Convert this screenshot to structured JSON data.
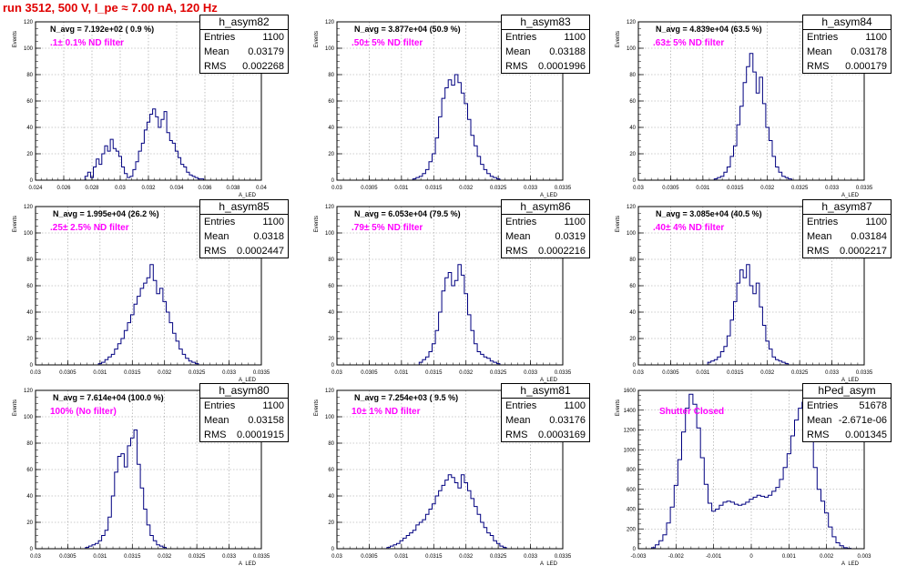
{
  "page": {
    "title": "run 3512,   500 V, I_pe ≈ 7.00 nA, 120 Hz"
  },
  "panels": [
    {
      "name": "h_asym82",
      "navg": "N_avg = 7.192e+02 ( 0.9 %)",
      "anno": ".1± 0.1% ND filter",
      "entries": "1100",
      "mean": "0.03179",
      "rms": "0.002268"
    },
    {
      "name": "h_asym83",
      "navg": "N_avg = 3.877e+04 (50.9 %)",
      "anno": ".50± 5% ND filter",
      "entries": "1100",
      "mean": "0.03188",
      "rms": "0.0001996"
    },
    {
      "name": "h_asym84",
      "navg": "N_avg = 4.839e+04 (63.5 %)",
      "anno": ".63± 5% ND filter",
      "entries": "1100",
      "mean": "0.03178",
      "rms": "0.000179"
    },
    {
      "name": "h_asym85",
      "navg": "N_avg = 1.995e+04 (26.2 %)",
      "anno": ".25± 2.5% ND filter",
      "entries": "1100",
      "mean": "0.0318",
      "rms": "0.0002447"
    },
    {
      "name": "h_asym86",
      "navg": "N_avg = 6.053e+04 (79.5 %)",
      "anno": ".79± 5% ND filter",
      "entries": "1100",
      "mean": "0.0319",
      "rms": "0.0002216"
    },
    {
      "name": "h_asym87",
      "navg": "N_avg = 3.085e+04 (40.5 %)",
      "anno": ".40± 4% ND filter",
      "entries": "1100",
      "mean": "0.03184",
      "rms": "0.0002217"
    },
    {
      "name": "h_asym80",
      "navg": "N_avg = 7.614e+04 (100.0 %)",
      "anno": "100% (No filter)",
      "entries": "1100",
      "mean": "0.03158",
      "rms": "0.0001915"
    },
    {
      "name": "h_asym81",
      "navg": "N_avg = 7.254e+03 ( 9.5 %)",
      "anno": "10± 1% ND filter",
      "entries": "1100",
      "mean": "0.03176",
      "rms": "0.0003169"
    },
    {
      "name": "hPed_asym",
      "navg": "",
      "anno": "Shutter Closed",
      "entries": "51678",
      "mean": "-2.671e-06",
      "rms": "0.001345"
    }
  ],
  "stat_labels": {
    "entries": "Entries",
    "mean": "Mean",
    "rms": "RMS"
  },
  "colors": {
    "title": "#e00000",
    "annotation": "#ff00ff",
    "histogram": "#000080",
    "grid": "#999999"
  },
  "chart_data": [
    {
      "type": "histogram",
      "title": "h_asym82",
      "xlabel": "A_LED",
      "ylabel": "Events",
      "xlim": [
        0.024,
        0.04
      ],
      "ylim": [
        0,
        120
      ],
      "grid": true,
      "xticks": [
        "0.024",
        "0.026",
        "0.028",
        "0.03",
        "0.032",
        "0.034",
        "0.036",
        "0.038",
        "0.04"
      ],
      "yticks": [
        "0",
        "20",
        "40",
        "60",
        "80",
        "100",
        "120"
      ],
      "x": [
        0.0274,
        0.0276,
        0.0278,
        0.028,
        0.0282,
        0.0284,
        0.0286,
        0.0288,
        0.029,
        0.0292,
        0.0294,
        0.0296,
        0.0298,
        0.03,
        0.0302,
        0.0304,
        0.0306,
        0.0308,
        0.031,
        0.0312,
        0.0314,
        0.0316,
        0.0318,
        0.032,
        0.0322,
        0.0324,
        0.0326,
        0.0328,
        0.033,
        0.0332,
        0.0334,
        0.0336,
        0.0338,
        0.034,
        0.0342,
        0.0344,
        0.0346,
        0.0348,
        0.035,
        0.0352,
        0.0354,
        0.0356,
        0.0358,
        0.036
      ],
      "y": [
        0,
        3,
        6,
        2,
        10,
        16,
        12,
        20,
        26,
        22,
        31,
        24,
        22,
        18,
        10,
        5,
        2,
        3,
        8,
        14,
        22,
        28,
        38,
        44,
        50,
        54,
        48,
        40,
        46,
        52,
        36,
        30,
        28,
        22,
        17,
        12,
        10,
        6,
        4,
        3,
        2,
        1,
        1,
        0
      ]
    },
    {
      "type": "histogram",
      "title": "h_asym83",
      "xlabel": "A_LED",
      "ylabel": "Events",
      "xlim": [
        0.03,
        0.0335
      ],
      "ylim": [
        0,
        120
      ],
      "grid": true,
      "xticks": [
        "0.03",
        "0.0305",
        "0.031",
        "0.0315",
        "0.032",
        "0.0325",
        "0.033",
        "0.0335"
      ],
      "yticks": [
        "0",
        "20",
        "40",
        "60",
        "80",
        "100",
        "120"
      ],
      "x": [
        0.0312,
        0.03125,
        0.0313,
        0.03135,
        0.0314,
        0.03145,
        0.0315,
        0.03155,
        0.0316,
        0.03165,
        0.0317,
        0.03175,
        0.0318,
        0.03185,
        0.0319,
        0.03195,
        0.032,
        0.03205,
        0.0321,
        0.03215,
        0.0322,
        0.03225,
        0.0323,
        0.03235,
        0.0324,
        0.03245,
        0.0325
      ],
      "y": [
        1,
        2,
        3,
        5,
        8,
        14,
        20,
        32,
        48,
        62,
        70,
        76,
        72,
        80,
        74,
        66,
        58,
        46,
        34,
        26,
        18,
        12,
        8,
        5,
        3,
        2,
        1
      ]
    },
    {
      "type": "histogram",
      "title": "h_asym84",
      "xlabel": "A_LED",
      "ylabel": "Events",
      "xlim": [
        0.03,
        0.0335
      ],
      "ylim": [
        0,
        120
      ],
      "grid": true,
      "xticks": [
        "0.03",
        "0.0305",
        "0.031",
        "0.0315",
        "0.032",
        "0.0325",
        "0.033",
        "0.0335"
      ],
      "yticks": [
        "0",
        "20",
        "40",
        "60",
        "80",
        "100",
        "120"
      ],
      "x": [
        0.0312,
        0.03125,
        0.0313,
        0.03135,
        0.0314,
        0.03145,
        0.0315,
        0.03155,
        0.0316,
        0.03165,
        0.0317,
        0.03175,
        0.0318,
        0.03185,
        0.0319,
        0.03195,
        0.032,
        0.03205,
        0.0321,
        0.03215,
        0.0322,
        0.03225,
        0.0323,
        0.03235
      ],
      "y": [
        1,
        2,
        3,
        6,
        10,
        18,
        26,
        42,
        56,
        74,
        86,
        96,
        82,
        66,
        78,
        58,
        40,
        30,
        18,
        10,
        6,
        3,
        2,
        1
      ]
    },
    {
      "type": "histogram",
      "title": "h_asym85",
      "xlabel": "A_LED",
      "ylabel": "Events",
      "xlim": [
        0.03,
        0.0335
      ],
      "ylim": [
        0,
        120
      ],
      "grid": true,
      "xticks": [
        "0.03",
        "0.0305",
        "0.031",
        "0.0315",
        "0.032",
        "0.0325",
        "0.033",
        "0.0335"
      ],
      "yticks": [
        "0",
        "20",
        "40",
        "60",
        "80",
        "100",
        "120"
      ],
      "x": [
        0.031,
        0.03105,
        0.0311,
        0.03115,
        0.0312,
        0.03125,
        0.0313,
        0.03135,
        0.0314,
        0.03145,
        0.0315,
        0.03155,
        0.0316,
        0.03165,
        0.0317,
        0.03175,
        0.0318,
        0.03185,
        0.0319,
        0.03195,
        0.032,
        0.03205,
        0.0321,
        0.03215,
        0.0322,
        0.03225,
        0.0323,
        0.03235,
        0.0324,
        0.03245,
        0.0325
      ],
      "y": [
        1,
        2,
        4,
        6,
        8,
        12,
        16,
        20,
        26,
        32,
        38,
        46,
        52,
        58,
        62,
        66,
        76,
        64,
        54,
        58,
        48,
        40,
        32,
        24,
        18,
        12,
        8,
        5,
        3,
        2,
        1
      ]
    },
    {
      "type": "histogram",
      "title": "h_asym86",
      "xlabel": "A_LED",
      "ylabel": "Events",
      "xlim": [
        0.03,
        0.0335
      ],
      "ylim": [
        0,
        120
      ],
      "grid": true,
      "xticks": [
        "0.03",
        "0.0305",
        "0.031",
        "0.0315",
        "0.032",
        "0.0325",
        "0.033",
        "0.0335"
      ],
      "yticks": [
        "0",
        "20",
        "40",
        "60",
        "80",
        "100",
        "120"
      ],
      "x": [
        0.0313,
        0.03135,
        0.0314,
        0.03145,
        0.0315,
        0.03155,
        0.0316,
        0.03165,
        0.0317,
        0.03175,
        0.0318,
        0.03185,
        0.0319,
        0.03195,
        0.032,
        0.03205,
        0.0321,
        0.03215,
        0.0322,
        0.03225,
        0.0323,
        0.03235,
        0.0324,
        0.03245,
        0.0325
      ],
      "y": [
        2,
        4,
        6,
        10,
        16,
        26,
        40,
        56,
        66,
        70,
        60,
        64,
        76,
        68,
        54,
        38,
        26,
        16,
        10,
        8,
        6,
        5,
        3,
        2,
        1
      ]
    },
    {
      "type": "histogram",
      "title": "h_asym87",
      "xlabel": "A_LED",
      "ylabel": "Events",
      "xlim": [
        0.03,
        0.0335
      ],
      "ylim": [
        0,
        120
      ],
      "grid": true,
      "xticks": [
        "0.03",
        "0.0305",
        "0.031",
        "0.0315",
        "0.032",
        "0.0325",
        "0.033",
        "0.0335"
      ],
      "yticks": [
        "0",
        "20",
        "40",
        "60",
        "80",
        "100",
        "120"
      ],
      "x": [
        0.0311,
        0.03115,
        0.0312,
        0.03125,
        0.0313,
        0.03135,
        0.0314,
        0.03145,
        0.0315,
        0.03155,
        0.0316,
        0.03165,
        0.0317,
        0.03175,
        0.0318,
        0.03185,
        0.0319,
        0.03195,
        0.032,
        0.03205,
        0.0321,
        0.03215,
        0.0322,
        0.03225,
        0.0323
      ],
      "y": [
        2,
        3,
        4,
        6,
        10,
        14,
        22,
        34,
        48,
        62,
        72,
        66,
        76,
        60,
        54,
        62,
        44,
        30,
        18,
        12,
        6,
        4,
        3,
        2,
        1
      ]
    },
    {
      "type": "histogram",
      "title": "h_asym80",
      "xlabel": "A_LED",
      "ylabel": "Events",
      "xlim": [
        0.03,
        0.0335
      ],
      "ylim": [
        0,
        120
      ],
      "grid": true,
      "xticks": [
        "0.03",
        "0.0305",
        "0.031",
        "0.0315",
        "0.032",
        "0.0325",
        "0.033",
        "0.0335"
      ],
      "yticks": [
        "0",
        "20",
        "40",
        "60",
        "80",
        "100",
        "120"
      ],
      "x": [
        0.0308,
        0.03085,
        0.0309,
        0.03095,
        0.031,
        0.03105,
        0.0311,
        0.03115,
        0.0312,
        0.03125,
        0.0313,
        0.03135,
        0.0314,
        0.03145,
        0.0315,
        0.03155,
        0.0316,
        0.03165,
        0.0317,
        0.03175,
        0.0318,
        0.03185,
        0.0319,
        0.03195,
        0.032
      ],
      "y": [
        1,
        2,
        3,
        4,
        6,
        10,
        14,
        24,
        40,
        58,
        70,
        72,
        62,
        78,
        84,
        90,
        64,
        46,
        30,
        18,
        10,
        6,
        3,
        2,
        1
      ]
    },
    {
      "type": "histogram",
      "title": "h_asym81",
      "xlabel": "A_LED",
      "ylabel": "Events",
      "xlim": [
        0.03,
        0.0335
      ],
      "ylim": [
        0,
        120
      ],
      "grid": true,
      "xticks": [
        "0.03",
        "0.0305",
        "0.031",
        "0.0315",
        "0.032",
        "0.0325",
        "0.033",
        "0.0335"
      ],
      "yticks": [
        "0",
        "20",
        "40",
        "60",
        "80",
        "100",
        "120"
      ],
      "x": [
        0.0308,
        0.03085,
        0.0309,
        0.03095,
        0.031,
        0.03105,
        0.0311,
        0.03115,
        0.0312,
        0.03125,
        0.0313,
        0.03135,
        0.0314,
        0.03145,
        0.0315,
        0.03155,
        0.0316,
        0.03165,
        0.0317,
        0.03175,
        0.0318,
        0.03185,
        0.0319,
        0.03195,
        0.032,
        0.03205,
        0.0321,
        0.03215,
        0.0322,
        0.03225,
        0.0323,
        0.03235,
        0.0324,
        0.03245,
        0.0325,
        0.03255,
        0.0326
      ],
      "y": [
        1,
        2,
        3,
        4,
        6,
        8,
        10,
        12,
        14,
        18,
        20,
        22,
        26,
        30,
        34,
        40,
        44,
        48,
        52,
        56,
        54,
        50,
        46,
        56,
        50,
        44,
        38,
        32,
        26,
        20,
        16,
        12,
        10,
        6,
        4,
        2,
        1
      ]
    },
    {
      "type": "histogram",
      "title": "hPed_asym",
      "xlabel": "A_LED",
      "ylabel": "Events",
      "xlim": [
        -0.003,
        0.003
      ],
      "ylim": [
        0,
        1600
      ],
      "grid": true,
      "xticks": [
        "-0.003",
        "-0.002",
        "-0.001",
        "0",
        "0.001",
        "0.002",
        "0.003"
      ],
      "yticks": [
        "0",
        "200",
        "400",
        "600",
        "800",
        "1000",
        "1200",
        "1400",
        "1600"
      ],
      "x": [
        -0.0026,
        -0.0025,
        -0.0024,
        -0.0023,
        -0.0022,
        -0.0021,
        -0.002,
        -0.0019,
        -0.0018,
        -0.0017,
        -0.0016,
        -0.0015,
        -0.0014,
        -0.0013,
        -0.0012,
        -0.0011,
        -0.001,
        -0.0009,
        -0.0008,
        -0.0007,
        -0.0006,
        -0.0005,
        -0.0004,
        -0.0003,
        -0.0002,
        -0.0001,
        0,
        0.0001,
        0.0002,
        0.0003,
        0.0004,
        0.0005,
        0.0006,
        0.0007,
        0.0008,
        0.0009,
        0.001,
        0.0011,
        0.0012,
        0.0013,
        0.0014,
        0.0015,
        0.0016,
        0.0017,
        0.0018,
        0.0019,
        0.002,
        0.0021,
        0.0022,
        0.0023,
        0.0024,
        0.0025,
        0.0026
      ],
      "y": [
        10,
        40,
        80,
        140,
        260,
        420,
        640,
        900,
        1180,
        1420,
        1560,
        1460,
        1220,
        920,
        650,
        460,
        380,
        400,
        440,
        470,
        480,
        470,
        450,
        440,
        450,
        470,
        500,
        520,
        540,
        530,
        520,
        540,
        580,
        620,
        700,
        820,
        960,
        1140,
        1300,
        1420,
        1480,
        1350,
        1100,
        820,
        600,
        480,
        360,
        220,
        120,
        60,
        30,
        10,
        4
      ]
    }
  ]
}
